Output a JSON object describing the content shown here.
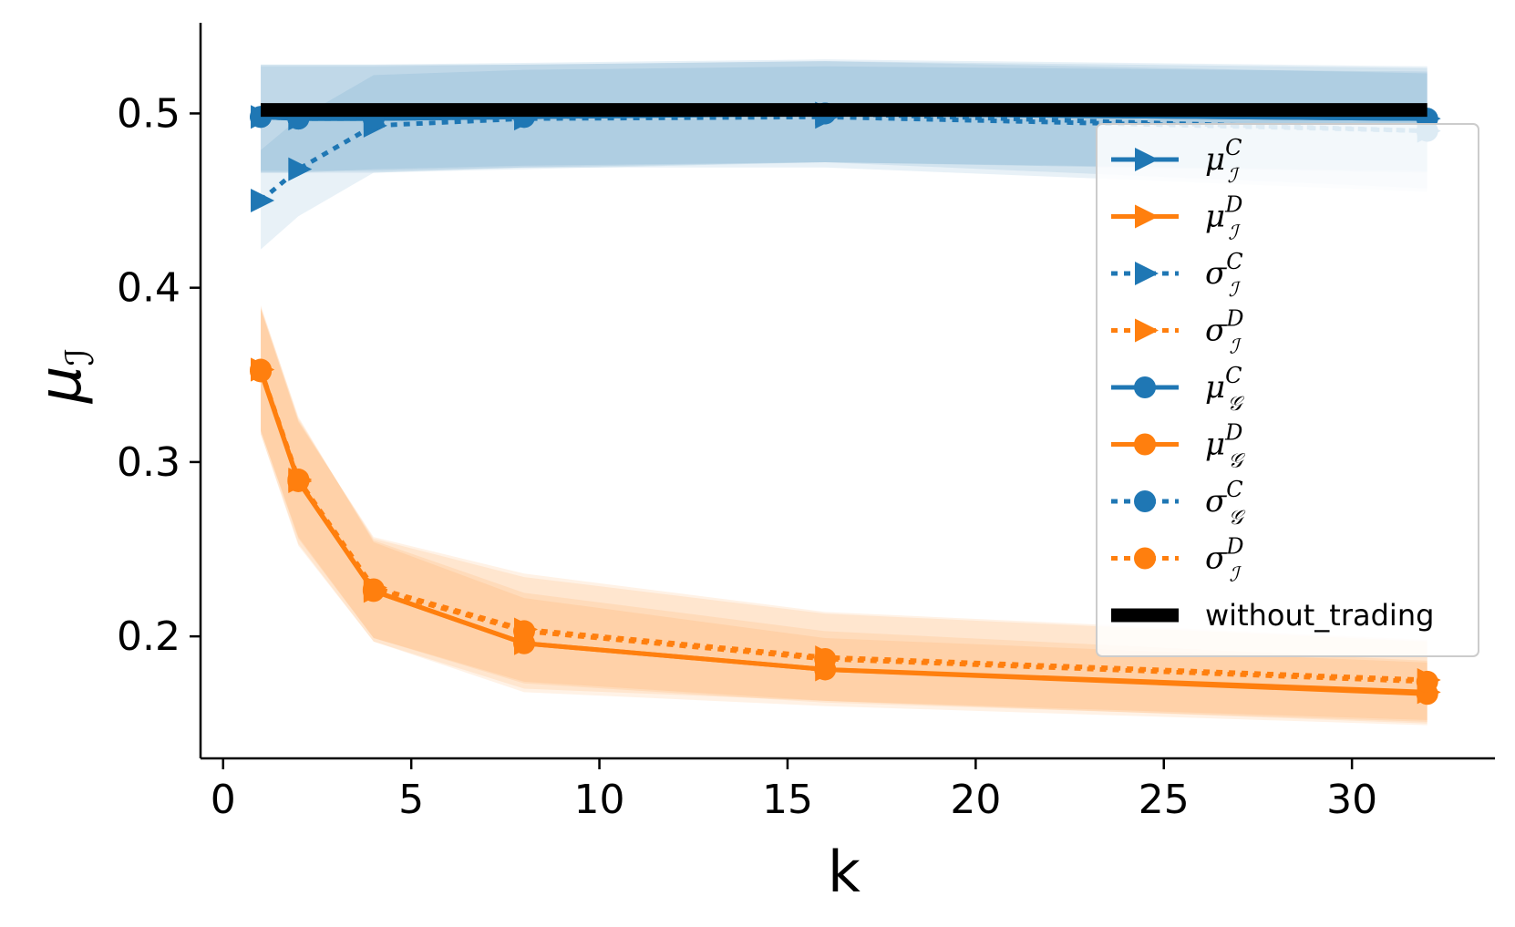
{
  "chart_data": {
    "type": "line",
    "xlabel": "k",
    "ylabel": "μ",
    "ylabel_sub": "ℐ",
    "xlim": [
      -0.6,
      33.8
    ],
    "ylim": [
      0.13,
      0.552
    ],
    "xticks": [
      0,
      5,
      10,
      15,
      20,
      25,
      30
    ],
    "xtick_labels": [
      "0",
      "5",
      "10",
      "15",
      "20",
      "25",
      "30"
    ],
    "yticks": [
      0.2,
      0.3,
      0.4,
      0.5
    ],
    "ytick_labels": [
      "0.2",
      "0.3",
      "0.4",
      "0.5"
    ],
    "legend_position": "right",
    "x": [
      1,
      2,
      4,
      8,
      16,
      32
    ],
    "series": [
      {
        "name": "C",
        "label_base": "μ",
        "label_sub": "ℐ",
        "label_sup": "C",
        "color": "#1f77b4",
        "dash": "solid",
        "marker": "triangle",
        "values": [
          0.498,
          0.497,
          0.497,
          0.498,
          0.5,
          0.497
        ],
        "band_low": [
          0.466,
          0.466,
          0.466,
          0.468,
          0.472,
          0.466
        ],
        "band_high": [
          0.528,
          0.528,
          0.528,
          0.529,
          0.531,
          0.527
        ]
      },
      {
        "name": "D",
        "label_base": "μ",
        "label_sub": "ℐ",
        "label_sup": "D",
        "color": "#ff7f0e",
        "dash": "solid",
        "marker": "triangle",
        "values": [
          0.353,
          0.289,
          0.226,
          0.196,
          0.181,
          0.168
        ],
        "band_low": [
          0.316,
          0.253,
          0.197,
          0.168,
          0.16,
          0.149
        ],
        "band_high": [
          0.39,
          0.325,
          0.255,
          0.225,
          0.203,
          0.186
        ]
      },
      {
        "name": "C",
        "label_base": "σ",
        "label_sub": "ℐ",
        "label_sup": "C",
        "color": "#1f77b4",
        "dash": "dotted",
        "marker": "triangle",
        "values": [
          0.45,
          0.468,
          0.493,
          0.497,
          0.498,
          0.49
        ],
        "band_low": [
          0.422,
          0.441,
          0.466,
          0.469,
          0.469,
          0.455
        ],
        "band_high": [
          0.479,
          0.497,
          0.522,
          0.525,
          0.527,
          0.524
        ]
      },
      {
        "name": "D",
        "label_base": "σ",
        "label_sub": "ℐ",
        "label_sup": "D",
        "color": "#ff7f0e",
        "dash": "dotted",
        "marker": "triangle",
        "values": [
          0.353,
          0.29,
          0.228,
          0.204,
          0.188,
          0.175
        ],
        "band_low": [
          0.318,
          0.257,
          0.199,
          0.173,
          0.162,
          0.151
        ],
        "band_high": [
          0.388,
          0.323,
          0.257,
          0.236,
          0.214,
          0.198
        ]
      },
      {
        "name": "C",
        "label_base": "μ",
        "label_sub": "𝒢",
        "label_sup": "C",
        "color": "#1f77b4",
        "dash": "solid",
        "marker": "circle",
        "values": [
          0.498,
          0.497,
          0.497,
          0.498,
          0.5,
          0.497
        ],
        "band_low": [
          0.467,
          0.467,
          0.467,
          0.469,
          0.472,
          0.467
        ],
        "band_high": [
          0.527,
          0.527,
          0.527,
          0.528,
          0.53,
          0.526
        ]
      },
      {
        "name": "D",
        "label_base": "μ",
        "label_sub": "𝒢",
        "label_sup": "D",
        "color": "#ff7f0e",
        "dash": "solid",
        "marker": "circle",
        "values": [
          0.352,
          0.289,
          0.226,
          0.196,
          0.181,
          0.167
        ],
        "band_low": [
          0.316,
          0.252,
          0.197,
          0.17,
          0.163,
          0.15
        ],
        "band_high": [
          0.389,
          0.326,
          0.254,
          0.222,
          0.199,
          0.185
        ]
      },
      {
        "name": "C",
        "label_base": "σ",
        "label_sub": "𝒢",
        "label_sup": "C",
        "color": "#1f77b4",
        "dash": "dotted",
        "marker": "circle",
        "values": [
          0.498,
          0.497,
          0.497,
          0.498,
          0.5,
          0.49
        ],
        "band_low": [
          0.466,
          0.466,
          0.468,
          0.47,
          0.472,
          0.457
        ],
        "band_high": [
          0.528,
          0.528,
          0.528,
          0.528,
          0.53,
          0.523
        ]
      },
      {
        "name": "D",
        "label_base": "σ",
        "label_sub": "ℐ",
        "label_sup": "D",
        "color": "#ff7f0e",
        "dash": "dotted",
        "marker": "circle",
        "values": [
          0.353,
          0.29,
          0.227,
          0.203,
          0.187,
          0.174
        ],
        "band_low": [
          0.318,
          0.256,
          0.199,
          0.174,
          0.163,
          0.152
        ],
        "band_high": [
          0.388,
          0.324,
          0.256,
          0.234,
          0.213,
          0.197
        ]
      },
      {
        "name": "without_trading",
        "label_text": "without_trading",
        "color": "#000000",
        "dash": "solid",
        "marker": "none",
        "x": [
          1,
          32
        ],
        "values": [
          0.502,
          0.502
        ]
      }
    ]
  }
}
